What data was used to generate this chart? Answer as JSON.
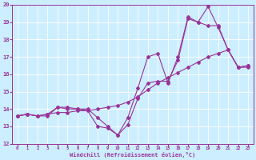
{
  "xlabel": "Windchill (Refroidissement éolien,°C)",
  "background_color": "#cceeff",
  "grid_color": "#ffffff",
  "line_color": "#993399",
  "line1_x": [
    0,
    1,
    2,
    3,
    4,
    5,
    6,
    7,
    8,
    9,
    10,
    11,
    12,
    13,
    14,
    15,
    16,
    17,
    18,
    19,
    20,
    21,
    22,
    23
  ],
  "line1_y": [
    13.6,
    13.7,
    13.6,
    13.7,
    13.8,
    13.8,
    13.9,
    13.9,
    14.0,
    14.1,
    14.2,
    14.4,
    14.7,
    15.1,
    15.5,
    15.8,
    16.1,
    16.4,
    16.7,
    17.0,
    17.2,
    17.4,
    16.4,
    16.5
  ],
  "line2_x": [
    0,
    1,
    2,
    3,
    4,
    5,
    6,
    7,
    8,
    9,
    10,
    11,
    12,
    13,
    14,
    15,
    16,
    17,
    18,
    19,
    20,
    21,
    22,
    23
  ],
  "line2_y": [
    13.6,
    13.7,
    13.6,
    13.6,
    14.1,
    14.1,
    14.0,
    14.0,
    13.5,
    13.0,
    12.5,
    13.1,
    14.6,
    15.5,
    15.6,
    15.6,
    16.8,
    19.2,
    19.0,
    18.8,
    18.8,
    17.4,
    16.4,
    16.4
  ],
  "line3_x": [
    0,
    1,
    2,
    3,
    4,
    5,
    6,
    7,
    8,
    9,
    10,
    11,
    12,
    13,
    14,
    15,
    16,
    17,
    18,
    19,
    20,
    21,
    22,
    23
  ],
  "line3_y": [
    13.6,
    13.7,
    13.6,
    13.7,
    14.1,
    14.0,
    14.0,
    13.9,
    13.0,
    12.9,
    12.5,
    13.5,
    15.2,
    17.0,
    17.2,
    15.5,
    17.0,
    19.3,
    19.0,
    19.9,
    18.7,
    17.4,
    16.4,
    16.5
  ],
  "xlim": [
    0,
    23
  ],
  "ylim": [
    12,
    20
  ],
  "yticks": [
    12,
    13,
    14,
    15,
    16,
    17,
    18,
    19,
    20
  ],
  "xticks": [
    0,
    1,
    2,
    3,
    4,
    5,
    6,
    7,
    8,
    9,
    10,
    11,
    12,
    13,
    14,
    15,
    16,
    17,
    18,
    19,
    20,
    21,
    22,
    23
  ],
  "marker": "D",
  "markersize": 2.0,
  "linewidth": 0.8
}
